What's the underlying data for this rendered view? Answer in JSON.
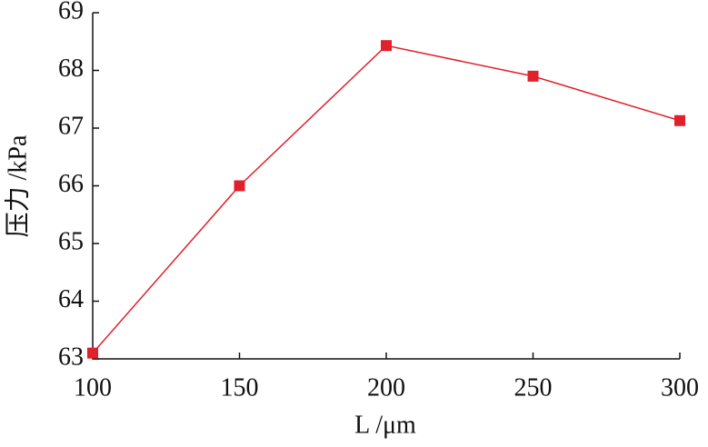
{
  "chart_data": {
    "type": "line",
    "x_label": "L /μm",
    "y_label": "压力 /kPa",
    "x": [
      100,
      150,
      200,
      250,
      300
    ],
    "series": [
      {
        "color": "#e0202a",
        "values": [
          63.1,
          66.0,
          68.43,
          67.9,
          67.13
        ]
      }
    ],
    "xlim": [
      100,
      300
    ],
    "xticks": [
      100,
      150,
      200,
      250,
      300
    ],
    "ylim": [
      63,
      69
    ],
    "yticks": [
      63,
      64,
      65,
      66,
      67,
      68,
      69
    ]
  }
}
